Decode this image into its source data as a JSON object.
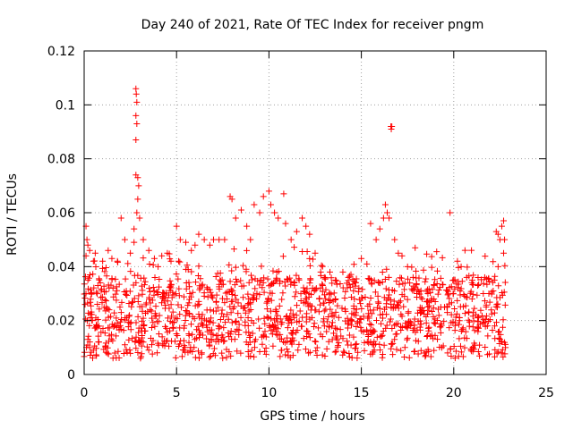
{
  "chart_data": {
    "type": "scatter",
    "title": "Day 240 of 2021, Rate Of TEC Index for receiver pngm",
    "xlabel": "GPS time / hours",
    "ylabel": "ROTI / TECUs",
    "xlim": [
      0,
      25
    ],
    "ylim": [
      0,
      0.12
    ],
    "xticks": [
      0,
      5,
      10,
      15,
      20,
      25
    ],
    "xtick_labels": [
      "0",
      "5",
      "10",
      "15",
      "20",
      "25"
    ],
    "yticks": [
      0,
      0.02,
      0.04,
      0.06,
      0.08,
      0.1,
      0.12
    ],
    "ytick_labels": [
      "0",
      "0.02",
      "0.04",
      "0.06",
      "0.08",
      "0.1",
      "0.12"
    ],
    "grid": true,
    "marker": "+",
    "series": [
      {
        "name": "ROTI",
        "color": "#ff0000",
        "points": [
          [
            0.1,
            0.055
          ],
          [
            0.15,
            0.05
          ],
          [
            0.2,
            0.048
          ],
          [
            0.1,
            0.044
          ],
          [
            0.3,
            0.046
          ],
          [
            0.5,
            0.042
          ],
          [
            0.6,
            0.045
          ],
          [
            0.2,
            0.035
          ],
          [
            0.4,
            0.03
          ],
          [
            0.05,
            0.026
          ],
          [
            0.2,
            0.013
          ],
          [
            0.3,
            0.01
          ],
          [
            0.5,
            0.009
          ],
          [
            0.8,
            0.012
          ],
          [
            1.0,
            0.042
          ],
          [
            1.3,
            0.046
          ],
          [
            1.5,
            0.043
          ],
          [
            1.8,
            0.042
          ],
          [
            2.0,
            0.058
          ],
          [
            2.2,
            0.05
          ],
          [
            2.5,
            0.045
          ],
          [
            2.7,
            0.049
          ],
          [
            2.8,
            0.106
          ],
          [
            2.82,
            0.104
          ],
          [
            2.85,
            0.101
          ],
          [
            2.8,
            0.096
          ],
          [
            2.85,
            0.093
          ],
          [
            2.8,
            0.087
          ],
          [
            2.8,
            0.074
          ],
          [
            2.9,
            0.073
          ],
          [
            2.95,
            0.07
          ],
          [
            2.9,
            0.065
          ],
          [
            2.85,
            0.06
          ],
          [
            3.0,
            0.058
          ],
          [
            2.7,
            0.054
          ],
          [
            3.2,
            0.05
          ],
          [
            3.5,
            0.046
          ],
          [
            3.8,
            0.043
          ],
          [
            4.0,
            0.04
          ],
          [
            4.2,
            0.044
          ],
          [
            4.5,
            0.045
          ],
          [
            4.7,
            0.042
          ],
          [
            5.0,
            0.055
          ],
          [
            5.2,
            0.05
          ],
          [
            5.5,
            0.049
          ],
          [
            5.8,
            0.046
          ],
          [
            6.0,
            0.048
          ],
          [
            6.2,
            0.052
          ],
          [
            6.5,
            0.05
          ],
          [
            6.8,
            0.048
          ],
          [
            7.0,
            0.05
          ],
          [
            7.3,
            0.05
          ],
          [
            7.6,
            0.05
          ],
          [
            7.9,
            0.066
          ],
          [
            8.0,
            0.065
          ],
          [
            8.2,
            0.058
          ],
          [
            8.5,
            0.061
          ],
          [
            8.8,
            0.055
          ],
          [
            9.0,
            0.05
          ],
          [
            9.2,
            0.063
          ],
          [
            9.5,
            0.06
          ],
          [
            9.7,
            0.066
          ],
          [
            10.0,
            0.068
          ],
          [
            10.1,
            0.063
          ],
          [
            10.3,
            0.06
          ],
          [
            10.5,
            0.058
          ],
          [
            10.8,
            0.067
          ],
          [
            10.9,
            0.056
          ],
          [
            11.2,
            0.05
          ],
          [
            11.5,
            0.053
          ],
          [
            11.8,
            0.058
          ],
          [
            12.0,
            0.055
          ],
          [
            12.2,
            0.052
          ],
          [
            12.5,
            0.045
          ],
          [
            12.8,
            0.038
          ],
          [
            13.0,
            0.036
          ],
          [
            13.3,
            0.038
          ],
          [
            13.6,
            0.035
          ],
          [
            14.0,
            0.038
          ],
          [
            14.3,
            0.036
          ],
          [
            14.7,
            0.034
          ],
          [
            15.0,
            0.043
          ],
          [
            15.3,
            0.041
          ],
          [
            15.5,
            0.056
          ],
          [
            15.8,
            0.05
          ],
          [
            16.0,
            0.054
          ],
          [
            16.2,
            0.058
          ],
          [
            16.3,
            0.063
          ],
          [
            16.4,
            0.06
          ],
          [
            16.5,
            0.058
          ],
          [
            16.6,
            0.092
          ],
          [
            16.62,
            0.091
          ],
          [
            16.65,
            0.092
          ],
          [
            16.8,
            0.05
          ],
          [
            17.0,
            0.045
          ],
          [
            17.2,
            0.044
          ],
          [
            17.5,
            0.04
          ],
          [
            17.8,
            0.036
          ],
          [
            18.0,
            0.03
          ],
          [
            18.3,
            0.028
          ],
          [
            18.6,
            0.03
          ],
          [
            19.0,
            0.027
          ],
          [
            19.3,
            0.025
          ],
          [
            19.5,
            0.025
          ],
          [
            19.8,
            0.06
          ],
          [
            20.0,
            0.035
          ],
          [
            20.2,
            0.042
          ],
          [
            20.4,
            0.04
          ],
          [
            20.7,
            0.036
          ],
          [
            21.0,
            0.035
          ],
          [
            21.3,
            0.033
          ],
          [
            21.6,
            0.03
          ],
          [
            21.9,
            0.03
          ],
          [
            22.2,
            0.035
          ],
          [
            22.3,
            0.053
          ],
          [
            22.4,
            0.052
          ],
          [
            22.5,
            0.05
          ],
          [
            22.6,
            0.055
          ],
          [
            22.7,
            0.057
          ],
          [
            22.75,
            0.05
          ],
          [
            22.4,
            0.04
          ],
          [
            22.7,
            0.045
          ],
          [
            22.8,
            0.01
          ]
        ],
        "band_hint": "dense band of points between about 0.005 and 0.04 TECUs from 0 to 22.8 hours"
      }
    ]
  }
}
